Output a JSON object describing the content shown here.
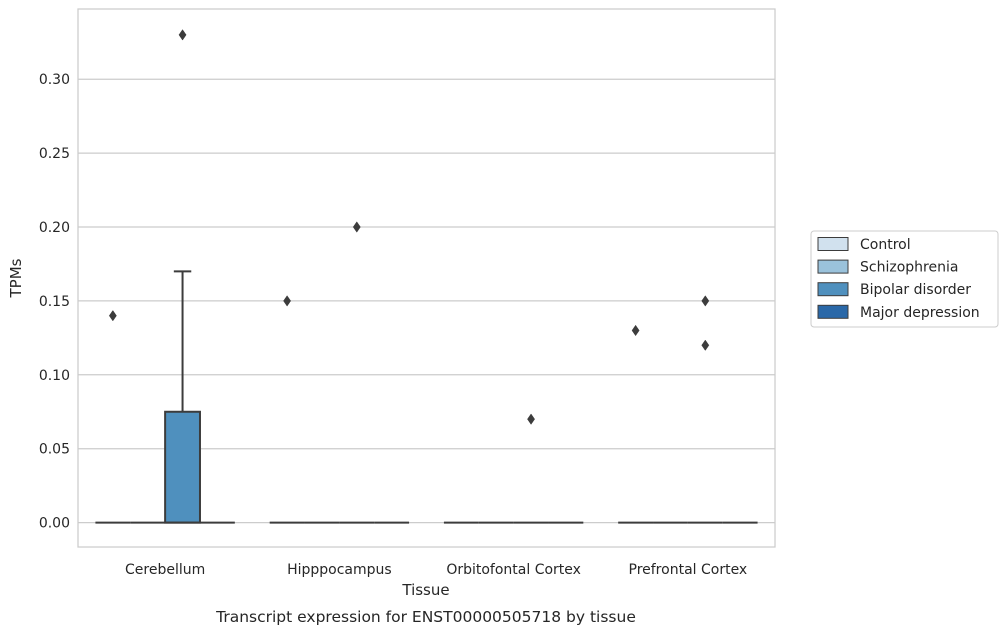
{
  "chart_data": {
    "type": "box",
    "xlabel": "Tissue",
    "ylabel": "TPMs",
    "caption": "Transcript expression for ENST00000505718 by tissue",
    "ylim": [
      -0.0165,
      0.3475
    ],
    "yticks": [
      0.0,
      0.05,
      0.1,
      0.15,
      0.2,
      0.25,
      0.3
    ],
    "ytick_labels": [
      "0.00",
      "0.05",
      "0.10",
      "0.15",
      "0.20",
      "0.25",
      "0.30"
    ],
    "grid": "horizontal",
    "legend_placement": "right",
    "categories": [
      "Cerebellum",
      "Hipppocampus",
      "Orbitofontal Cortex",
      "Prefrontal Cortex"
    ],
    "series": [
      {
        "name": "Control",
        "color": "#d1e1ee",
        "boxes": [
          {
            "category": "Cerebellum",
            "q1": 0,
            "median": 0,
            "q3": 0,
            "whisker_low": 0,
            "whisker_high": 0,
            "outliers": [
              0.14
            ]
          },
          {
            "category": "Hipppocampus",
            "q1": 0,
            "median": 0,
            "q3": 0,
            "whisker_low": 0,
            "whisker_high": 0,
            "outliers": [
              0.15
            ]
          },
          {
            "category": "Orbitofontal Cortex",
            "q1": 0,
            "median": 0,
            "q3": 0,
            "whisker_low": 0,
            "whisker_high": 0,
            "outliers": []
          },
          {
            "category": "Prefrontal Cortex",
            "q1": 0,
            "median": 0,
            "q3": 0,
            "whisker_low": 0,
            "whisker_high": 0,
            "outliers": [
              0.13
            ]
          }
        ]
      },
      {
        "name": "Schizophrenia",
        "color": "#9ac2db",
        "boxes": [
          {
            "category": "Cerebellum",
            "q1": 0,
            "median": 0,
            "q3": 0,
            "whisker_low": 0,
            "whisker_high": 0,
            "outliers": []
          },
          {
            "category": "Hipppocampus",
            "q1": 0,
            "median": 0,
            "q3": 0,
            "whisker_low": 0,
            "whisker_high": 0,
            "outliers": []
          },
          {
            "category": "Orbitofontal Cortex",
            "q1": 0,
            "median": 0,
            "q3": 0,
            "whisker_low": 0,
            "whisker_high": 0,
            "outliers": []
          },
          {
            "category": "Prefrontal Cortex",
            "q1": 0,
            "median": 0,
            "q3": 0,
            "whisker_low": 0,
            "whisker_high": 0,
            "outliers": []
          }
        ]
      },
      {
        "name": "Bipolar disorder",
        "color": "#4f90be",
        "boxes": [
          {
            "category": "Cerebellum",
            "q1": 0,
            "median": 0,
            "q3": 0.075,
            "whisker_low": 0,
            "whisker_high": 0.17,
            "outliers": [
              0.33
            ]
          },
          {
            "category": "Hipppocampus",
            "q1": 0,
            "median": 0,
            "q3": 0,
            "whisker_low": 0,
            "whisker_high": 0,
            "outliers": [
              0.2
            ]
          },
          {
            "category": "Orbitofontal Cortex",
            "q1": 0,
            "median": 0,
            "q3": 0,
            "whisker_low": 0,
            "whisker_high": 0,
            "outliers": [
              0.07
            ]
          },
          {
            "category": "Prefrontal Cortex",
            "q1": 0,
            "median": 0,
            "q3": 0,
            "whisker_low": 0,
            "whisker_high": 0,
            "outliers": [
              0.15,
              0.12
            ]
          }
        ]
      },
      {
        "name": "Major depression",
        "color": "#2a68a8",
        "boxes": [
          {
            "category": "Cerebellum",
            "q1": 0,
            "median": 0,
            "q3": 0,
            "whisker_low": 0,
            "whisker_high": 0,
            "outliers": []
          },
          {
            "category": "Hipppocampus",
            "q1": 0,
            "median": 0,
            "q3": 0,
            "whisker_low": 0,
            "whisker_high": 0,
            "outliers": []
          },
          {
            "category": "Orbitofontal Cortex",
            "q1": 0,
            "median": 0,
            "q3": 0,
            "whisker_low": 0,
            "whisker_high": 0,
            "outliers": []
          },
          {
            "category": "Prefrontal Cortex",
            "q1": 0,
            "median": 0,
            "q3": 0,
            "whisker_low": 0,
            "whisker_high": 0,
            "outliers": []
          }
        ]
      }
    ],
    "colors": {
      "grid": "#cccccc",
      "frame": "#cccccc",
      "line": "#3c3c3c",
      "text": "#262626"
    }
  }
}
